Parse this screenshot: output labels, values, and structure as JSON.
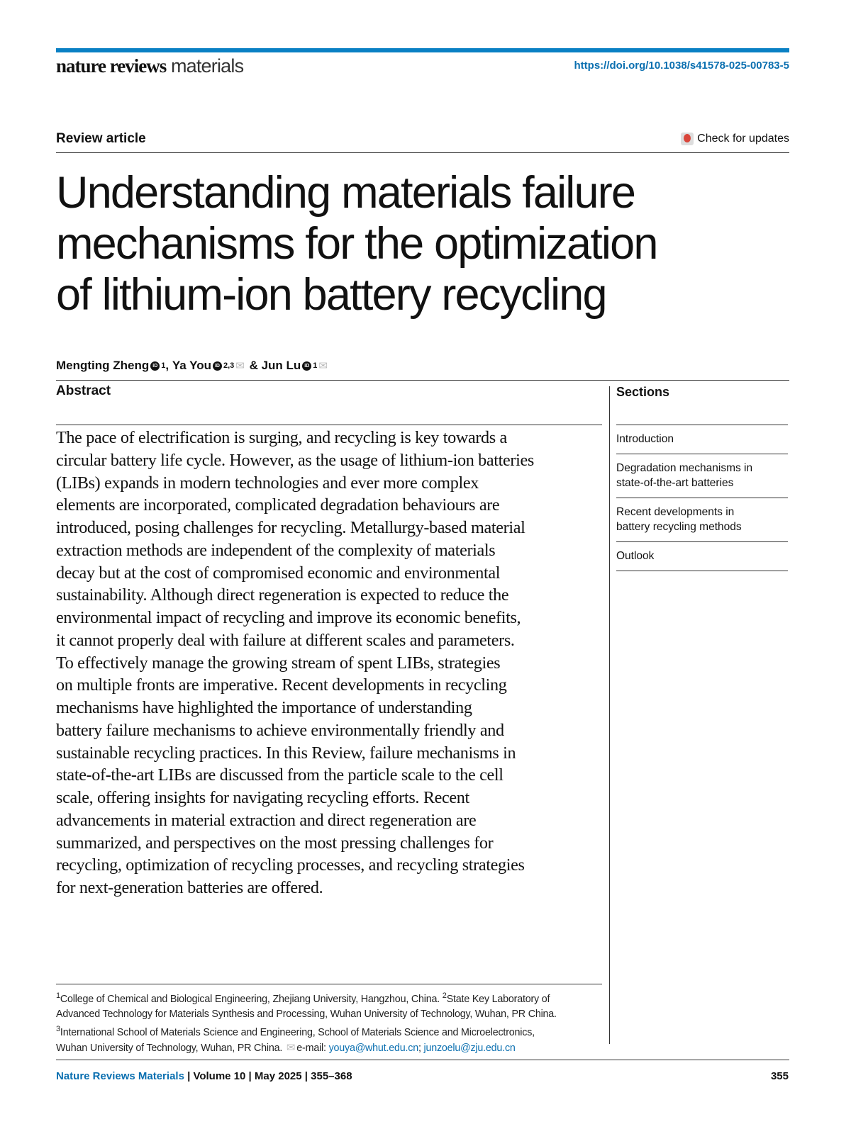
{
  "header": {
    "brand_bold": "nature reviews",
    "brand_light": "materials",
    "doi": "https://doi.org/10.1038/s41578-025-00783-5",
    "colors": {
      "accent": "#0a80c4"
    }
  },
  "article_type": "Review article",
  "check_updates": {
    "label": "Check for updates",
    "icon": "check-for-updates-icon"
  },
  "title_lines": [
    "Understanding materials failure",
    "mechanisms for the optimization",
    "of lithium-ion battery recycling"
  ],
  "authors": [
    {
      "name": "Mengting Zheng",
      "aff": "1",
      "email": false
    },
    {
      "name": "Ya You",
      "aff": "2,3",
      "email": true
    },
    {
      "name": "Jun Lu",
      "aff": "1",
      "email": true
    }
  ],
  "authors_sep": [
    ", ",
    " & "
  ],
  "abstract": {
    "heading": "Abstract",
    "lines": [
      "The pace of electrification is surging, and recycling is key towards a",
      "circular battery life cycle. However, as the usage of lithium-ion batteries",
      "(LIBs) expands in modern technologies and ever more complex",
      "elements are incorporated, complicated degradation behaviours are",
      "introduced, posing challenges for recycling. Metallurgy-based material",
      "extraction methods are independent of the complexity of materials",
      "decay but at the cost of compromised economic and environmental",
      "sustainability. Although direct regeneration is expected to reduce the",
      "environmental impact of recycling and improve its economic benefits,",
      "it cannot properly deal with failure at different scales and parameters.",
      "To effectively manage the growing stream of spent LIBs, strategies",
      "on multiple fronts are imperative. Recent developments in recycling",
      "mechanisms have highlighted the importance of understanding",
      "battery failure mechanisms to achieve environmentally friendly and",
      "sustainable recycling practices. In this Review, failure mechanisms in",
      "state-of-the-art LIBs are discussed from the particle scale to the cell",
      "scale, offering insights for navigating recycling efforts. Recent",
      "advancements in material extraction and direct regeneration are",
      "summarized, and perspectives on the most pressing challenges for",
      "recycling, optimization of recycling processes, and recycling strategies",
      "for next-generation batteries are offered."
    ]
  },
  "sections": {
    "heading": "Sections",
    "items": [
      "Introduction",
      "Degradation mechanisms in state-of-the-art batteries",
      "Recent developments in battery recycling methods",
      "Outlook"
    ]
  },
  "affiliations": {
    "line1_sup": "1",
    "line1": "College of Chemical and Biological Engineering, Zhejiang University, Hangzhou, China. ",
    "line1b_sup": "2",
    "line1b": "State Key Laboratory of",
    "line2": "Advanced Technology for Materials Synthesis and Processing, Wuhan University of Technology, Wuhan, PR China.",
    "line3_sup": "3",
    "line3": "International School of Materials Science and Engineering, School of Materials Science and Microelectronics,",
    "line4": "Wuhan University of Technology, Wuhan, PR China. ",
    "email_label": "e-mail: ",
    "email1": "youya@whut.edu.cn",
    "email_sep": "; ",
    "email2": "junzoelu@zju.edu.cn"
  },
  "footer": {
    "journal": "Nature Reviews Materials",
    "details": " | Volume 10 | May 2025 | 355–368",
    "page": "355"
  }
}
